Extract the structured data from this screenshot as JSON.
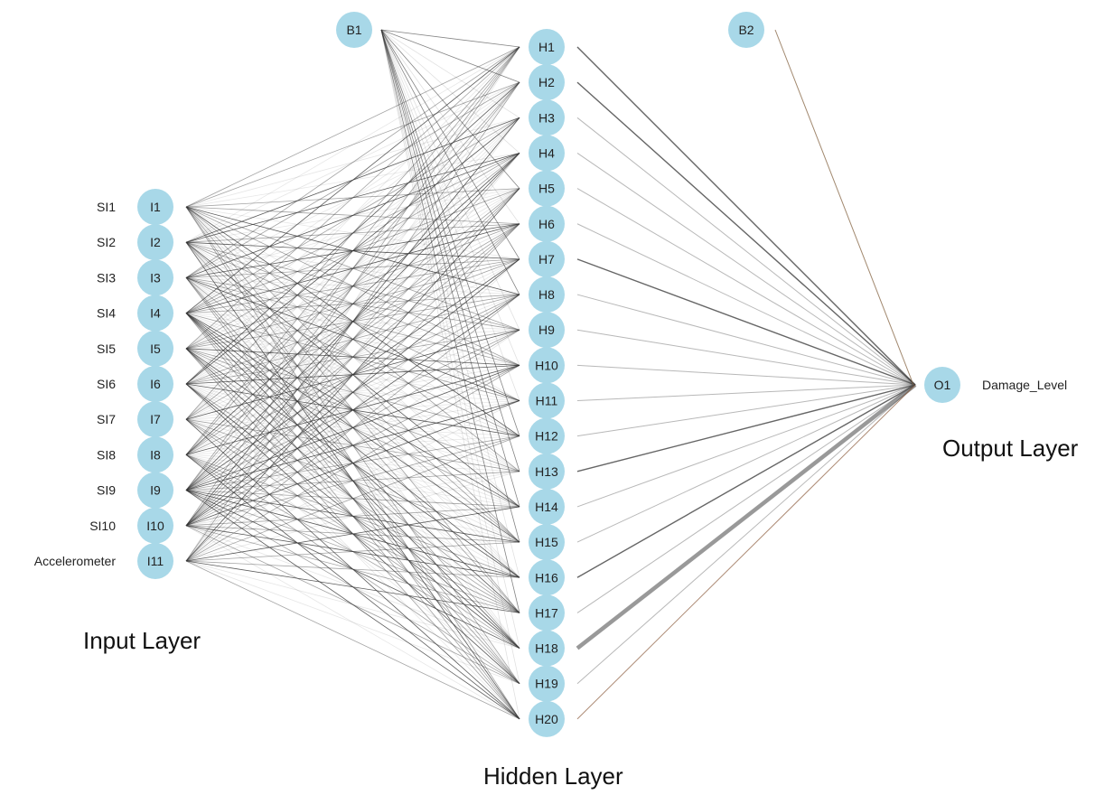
{
  "colors": {
    "node_fill": "#a8d8e8",
    "edge": "#333333",
    "edge_light": "#bbbbbb"
  },
  "input_nodes": [
    {
      "id": "I1",
      "name": "SI1"
    },
    {
      "id": "I2",
      "name": "SI2"
    },
    {
      "id": "I3",
      "name": "SI3"
    },
    {
      "id": "I4",
      "name": "SI4"
    },
    {
      "id": "I5",
      "name": "SI5"
    },
    {
      "id": "I6",
      "name": "SI6"
    },
    {
      "id": "I7",
      "name": "SI7"
    },
    {
      "id": "I8",
      "name": "SI8"
    },
    {
      "id": "I9",
      "name": "SI9"
    },
    {
      "id": "I10",
      "name": "SI10"
    },
    {
      "id": "I11",
      "name": "Accelerometer"
    }
  ],
  "hidden_nodes": [
    "H1",
    "H2",
    "H3",
    "H4",
    "H5",
    "H6",
    "H7",
    "H8",
    "H9",
    "H10",
    "H11",
    "H12",
    "H13",
    "H14",
    "H15",
    "H16",
    "H17",
    "H18",
    "H19",
    "H20"
  ],
  "bias_nodes": [
    "B1",
    "B2"
  ],
  "output_node": {
    "id": "O1",
    "name": "Damage_Level"
  },
  "layer_titles": {
    "input": "Input Layer",
    "hidden": "Hidden Layer",
    "output": "Output Layer"
  }
}
